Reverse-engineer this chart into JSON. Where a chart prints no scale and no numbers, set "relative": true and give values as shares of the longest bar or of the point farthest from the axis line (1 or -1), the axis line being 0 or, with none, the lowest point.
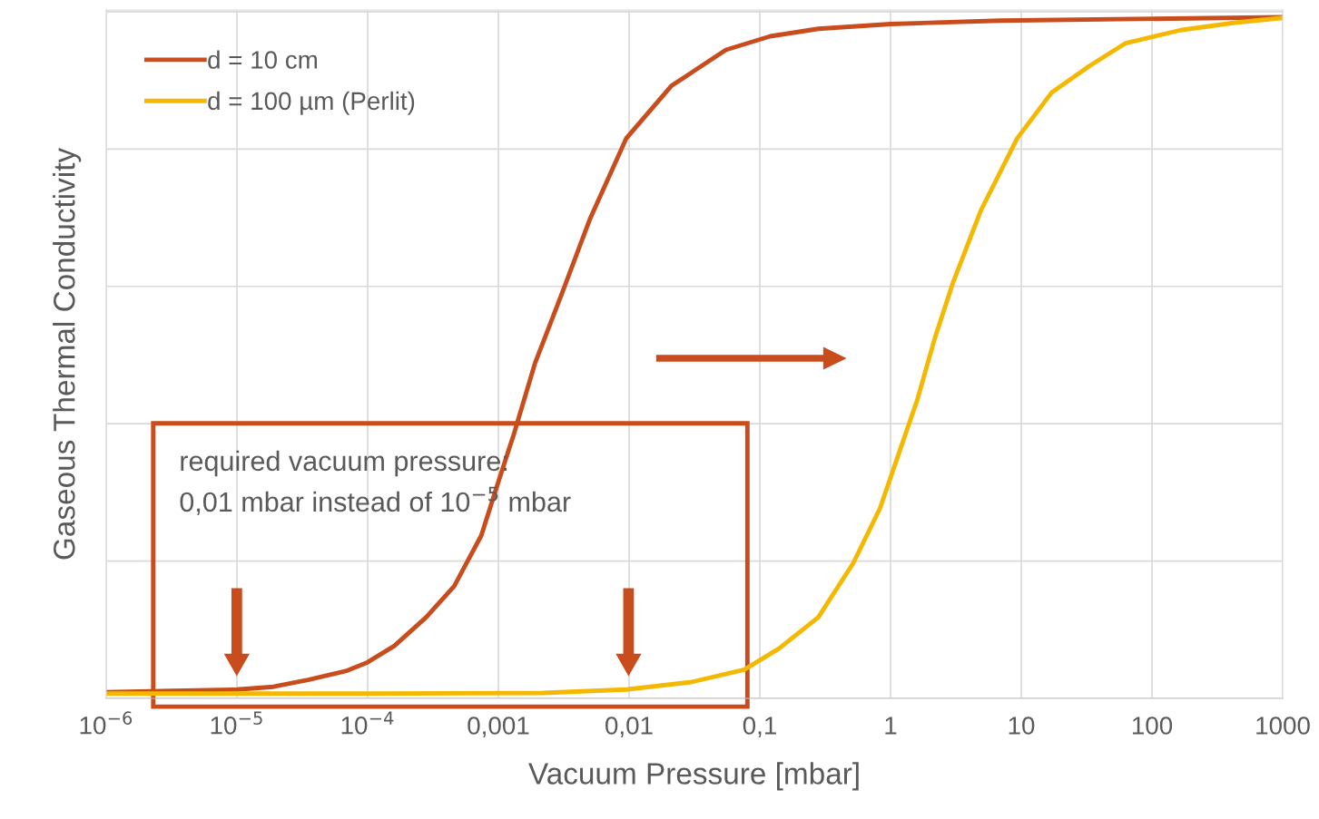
{
  "chart_data": {
    "type": "line",
    "relative": true,
    "log": "x",
    "xlabel": "Vacuum Pressure [mbar]",
    "ylabel": "Gaseous Thermal Conductivity",
    "xlim": [
      1e-06,
      1000
    ],
    "xticks": [
      {
        "value": 1e-06,
        "label": "10$^{−6}$"
      },
      {
        "value": 1e-05,
        "label": "10$^{−5}$"
      },
      {
        "value": 0.0001,
        "label": "10$^{−4}$"
      },
      {
        "value": 0.001,
        "label": "0,001"
      },
      {
        "value": 0.01,
        "label": "0,01"
      },
      {
        "value": 0.1,
        "label": "0,1"
      },
      1,
      10,
      100,
      1000
    ],
    "grid": true,
    "legend": "top left",
    "marker": "none",
    "line_style": "solid",
    "annotations": [
      "required vacuum pressure:\n0,01 mbar instead of 10$^{−5}$ mbar"
    ],
    "series": [
      {
        "name": "d = 10 cm",
        "color": "#c84c1c",
        "x": [
          1e-06,
          3.2e-06,
          1e-05,
          1.9e-05,
          3.5e-05,
          6.8e-05,
          0.0001,
          0.00016,
          0.00028,
          0.00046,
          0.00074,
          0.001,
          0.0013,
          0.0019,
          0.0031,
          0.005,
          0.0095,
          0.021,
          0.055,
          0.12,
          0.28,
          1,
          6.8,
          1000
        ],
        "values": [
          0.009,
          0.011,
          0.013,
          0.017,
          0.027,
          0.04,
          0.053,
          0.077,
          0.119,
          0.165,
          0.239,
          0.318,
          0.385,
          0.491,
          0.597,
          0.703,
          0.822,
          0.899,
          0.952,
          0.972,
          0.983,
          0.99,
          0.995,
          1.0
        ]
      },
      {
        "name": "d = 100 µm (Perlit)",
        "color": "#f5b800",
        "x": [
          1e-06,
          9.3e-05,
          0.0022,
          0.0095,
          0.03,
          0.076,
          0.14,
          0.28,
          0.52,
          0.83,
          1.15,
          1.6,
          2.2,
          3.0,
          4.9,
          9.3,
          17,
          33,
          63,
          165,
          430,
          1000
        ],
        "values": [
          0.007,
          0.007,
          0.008,
          0.013,
          0.024,
          0.042,
          0.073,
          0.119,
          0.199,
          0.279,
          0.358,
          0.438,
          0.531,
          0.61,
          0.716,
          0.822,
          0.889,
          0.928,
          0.962,
          0.981,
          0.992,
          0.999
        ]
      }
    ]
  }
}
